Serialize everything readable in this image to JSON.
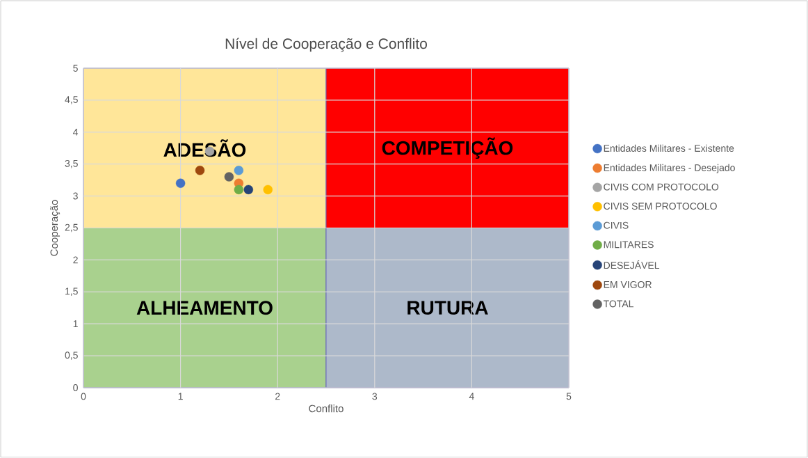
{
  "chart_data": {
    "type": "scatter",
    "title": "Nível de Cooperação e Conflito",
    "xlabel": "Conflito",
    "ylabel": "Cooperação",
    "xlim": [
      0,
      5
    ],
    "ylim": [
      0,
      5
    ],
    "xticks": [
      0,
      1,
      2,
      3,
      4,
      5
    ],
    "yticks": [
      0,
      {
        "value": 0.5,
        "label": "0,5"
      },
      1,
      {
        "value": 1.5,
        "label": "1,5"
      },
      2,
      {
        "value": 2.5,
        "label": "2,5"
      },
      3,
      {
        "value": 3.5,
        "label": "3,5"
      },
      4,
      {
        "value": 4.5,
        "label": "4,5"
      },
      5
    ],
    "grid": true,
    "legend": "right",
    "stacked": true,
    "series": [
      {
        "type": "bar",
        "x": [
          1.25,
          3.75
        ],
        "values": [
          2.5,
          2.5
        ],
        "colors": [
          "#a9d18e",
          "#adb9ca"
        ],
        "value_labels": [
          "ALHEAMENTO",
          "RUTURA"
        ]
      },
      {
        "type": "bar",
        "x": [
          1.25,
          3.75
        ],
        "values": [
          2.5,
          2.5
        ],
        "colors": [
          "#ffe699",
          "#ff0000"
        ],
        "value_labels": [
          "ADESÃO",
          "COMPETIÇÃO"
        ]
      },
      {
        "name": "Entidades Militares - Existente",
        "color": "#4472c4",
        "x": [
          1.0
        ],
        "values": [
          3.2
        ]
      },
      {
        "name": "Entidades Militares - Desejado",
        "color": "#ed7d31",
        "x": [
          1.6
        ],
        "values": [
          3.2
        ]
      },
      {
        "name": "CIVIS COM PROTOCOLO",
        "color": "#a5a5a5",
        "x": [
          1.3
        ],
        "values": [
          3.7
        ]
      },
      {
        "name": "CIVIS SEM PROTOCOLO",
        "color": "#ffc000",
        "x": [
          1.9
        ],
        "values": [
          3.1
        ]
      },
      {
        "name": "CIVIS",
        "color": "#5b9bd5",
        "x": [
          1.6
        ],
        "values": [
          3.4
        ]
      },
      {
        "name": "MILITARES",
        "color": "#70ad47",
        "x": [
          1.6
        ],
        "values": [
          3.1
        ]
      },
      {
        "name": "DESEJÁVEL",
        "color": "#264478",
        "x": [
          1.7
        ],
        "values": [
          3.1
        ]
      },
      {
        "name": "EM VIGOR",
        "color": "#9e480e",
        "x": [
          1.2
        ],
        "values": [
          3.4
        ]
      },
      {
        "name": "TOTAL",
        "color": "#636363",
        "x": [
          1.5
        ],
        "values": [
          3.3
        ]
      }
    ]
  }
}
